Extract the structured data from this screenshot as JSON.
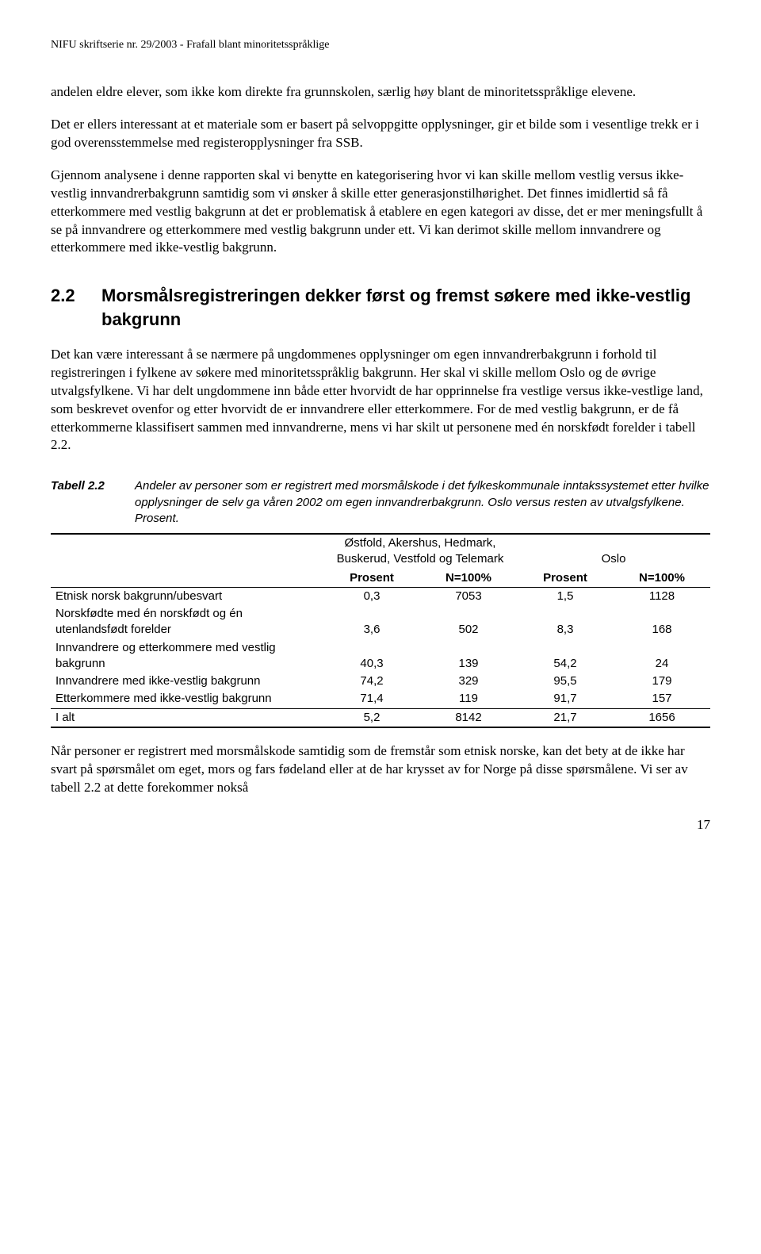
{
  "header": "NIFU skriftserie nr. 29/2003 - Frafall blant minoritetsspråklige",
  "para1": "andelen eldre elever, som ikke kom direkte fra grunnskolen, særlig høy blant de minoritetsspråklige elevene.",
  "para2": "Det er ellers interessant at et materiale som er basert på selvoppgitte opplysninger, gir et bilde som i vesentlige trekk er i god overensstemmelse med registeropplysninger fra SSB.",
  "para3": "Gjennom analysene i denne rapporten skal vi benytte en kategorisering hvor vi kan skille mellom vestlig versus ikke-vestlig innvandrerbakgrunn samtidig som vi ønsker å skille etter generasjonstilhørighet. Det finnes imidlertid så få etterkommere med vestlig bakgrunn at det er problematisk å etablere en egen kategori av disse, det er mer meningsfullt å se på innvandrere og etterkommere med vestlig bakgrunn under ett. Vi kan derimot skille mellom innvandrere og etterkommere med ikke-vestlig bakgrunn.",
  "section": {
    "num": "2.2",
    "title": "Morsmålsregistreringen dekker først og fremst søkere med ikke-vestlig bakgrunn"
  },
  "para4": "Det kan være interessant å se nærmere på ungdommenes opplysninger om egen innvandrerbakgrunn i forhold til registreringen i fylkene av søkere med minoritetsspråklig bakgrunn. Her skal vi skille mellom Oslo og de øvrige utvalgsfylkene. Vi har delt ungdommene inn både etter hvorvidt de har opprinnelse fra vestlige versus ikke-vestlige land, som beskrevet ovenfor og etter hvorvidt de er innvandrere eller etterkommere. For de med vestlig bakgrunn, er de få etterkommerne klassifisert sammen med innvandrerne, mens vi har skilt ut personene med én norskfødt forelder i tabell 2.2.",
  "table": {
    "caption_label": "Tabell 2.2",
    "caption_text": "Andeler av personer som er registrert med morsmålskode i det fylkeskommunale inntakssystemet etter hvilke opplysninger de selv ga våren 2002 om egen innvandrerbakgrunn. Oslo versus resten av utvalgsfylkene. Prosent.",
    "group1": "Østfold, Akershus, Hedmark, Buskerud, Vestfold og Telemark",
    "group2": "Oslo",
    "col_prosent": "Prosent",
    "col_n": "N=100%",
    "rows": [
      {
        "label": "Etnisk norsk bakgrunn/ubesvart",
        "p1": "0,3",
        "n1": "7053",
        "p2": "1,5",
        "n2": "1128"
      },
      {
        "label": "Norskfødte med én norskfødt og én utenlandsfødt forelder",
        "p1": "3,6",
        "n1": "502",
        "p2": "8,3",
        "n2": "168"
      },
      {
        "label": "Innvandrere og etterkommere med vestlig bakgrunn",
        "p1": "40,3",
        "n1": "139",
        "p2": "54,2",
        "n2": "24"
      },
      {
        "label": "Innvandrere med ikke-vestlig bakgrunn",
        "p1": "74,2",
        "n1": "329",
        "p2": "95,5",
        "n2": "179"
      },
      {
        "label": "Etterkommere med ikke-vestlig bakgrunn",
        "p1": "71,4",
        "n1": "119",
        "p2": "91,7",
        "n2": "157"
      }
    ],
    "total": {
      "label": "I alt",
      "p1": "5,2",
      "n1": "8142",
      "p2": "21,7",
      "n2": "1656"
    }
  },
  "para5": "Når personer er registrert med morsmålskode samtidig som de fremstår som etnisk norske, kan det bety at de ikke har svart på spørsmålet om eget, mors og fars fødeland eller at de har krysset av for Norge på disse spørsmålene. Vi ser av tabell 2.2 at dette forekommer nokså",
  "page_number": "17"
}
